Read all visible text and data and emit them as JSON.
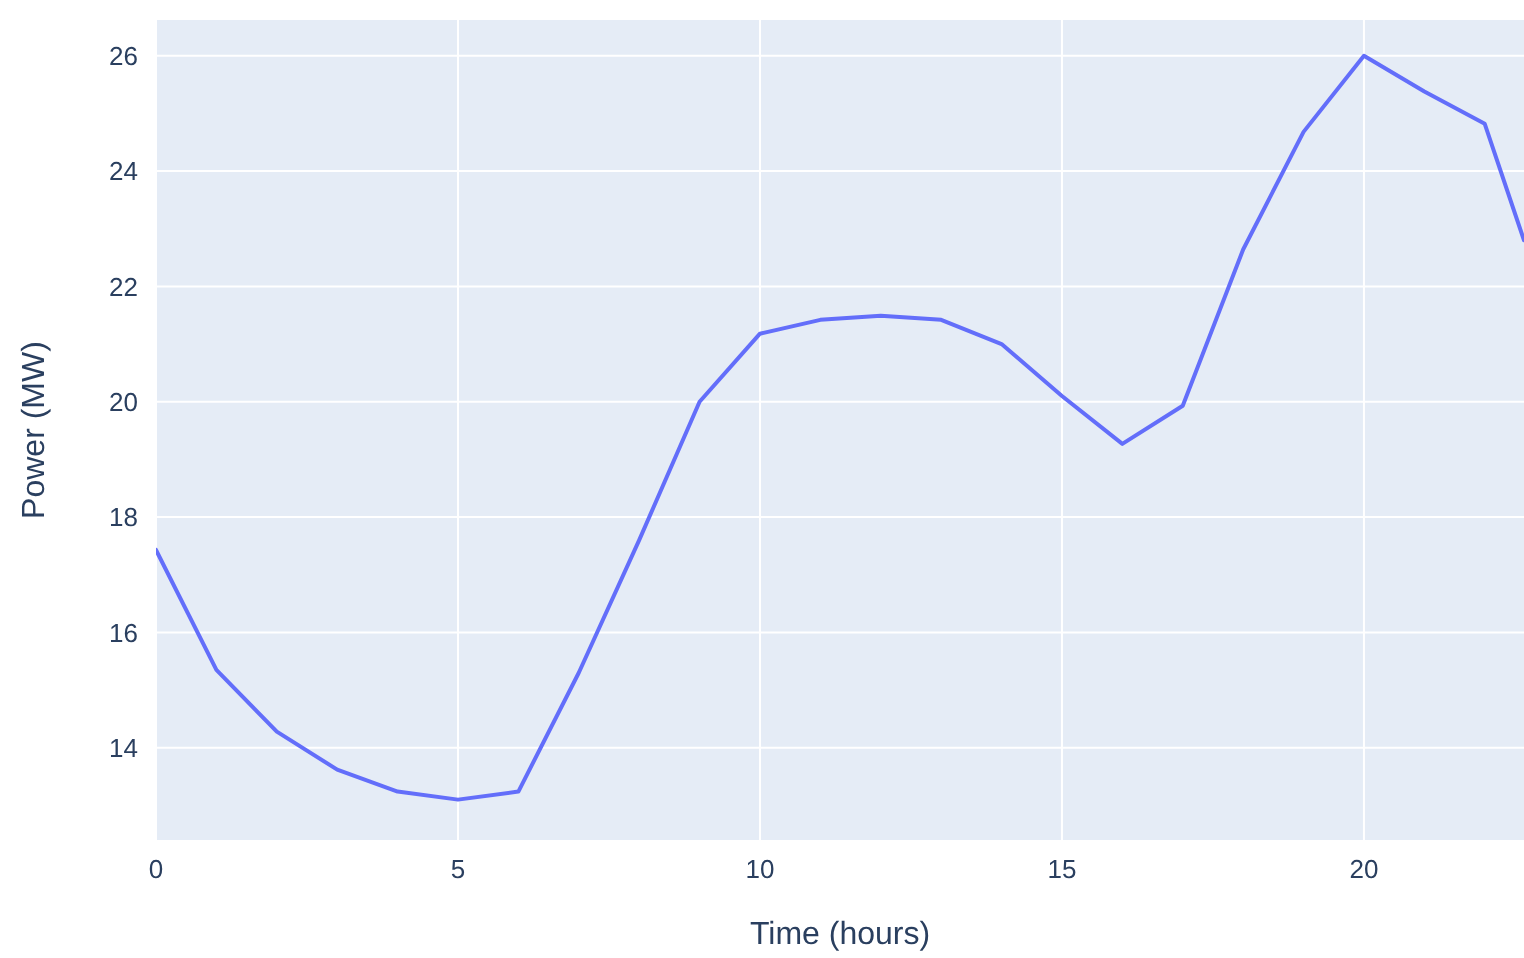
{
  "chart_data": {
    "type": "line",
    "xlabel": "Time (hours)",
    "ylabel": "Power (MW)",
    "x": [
      0,
      1,
      2,
      3,
      4,
      5,
      6,
      7,
      8,
      9,
      10,
      11,
      12,
      13,
      14,
      15,
      16,
      17,
      18,
      19,
      20,
      21,
      22,
      22.65
    ],
    "series": [
      {
        "color": "#636efa",
        "values": [
          17.43,
          15.35,
          14.28,
          13.62,
          13.24,
          13.1,
          13.24,
          15.3,
          17.6,
          20.0,
          21.18,
          21.42,
          21.49,
          21.42,
          21.0,
          20.1,
          19.27,
          19.93,
          22.64,
          24.68,
          26.0,
          25.38,
          24.82,
          22.8
        ]
      }
    ],
    "xlim": [
      0,
      22.65
    ],
    "ylim": [
      12.4,
      26.62
    ],
    "xticks": [
      0,
      5,
      10,
      15,
      20
    ],
    "yticks": [
      14,
      16,
      18,
      20,
      22,
      24,
      26
    ],
    "grid": true,
    "line_style": "solid",
    "marker": "none"
  }
}
